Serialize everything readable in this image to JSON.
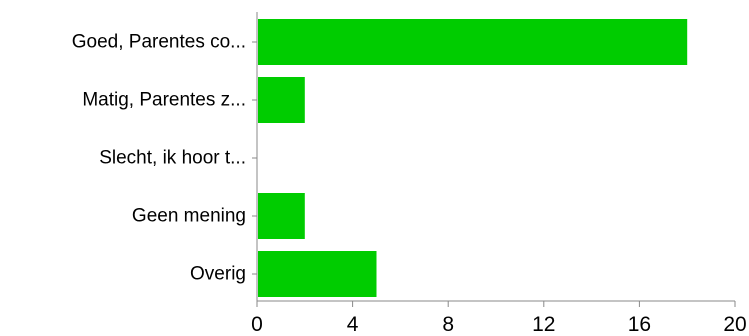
{
  "chart_data": {
    "type": "bar",
    "orientation": "horizontal",
    "categories": [
      "Goed, Parentes co...",
      "Matig, Parentes z...",
      "Slecht, ik hoor t...",
      "Geen mening",
      "Overig"
    ],
    "values": [
      18,
      2,
      0,
      2,
      5
    ],
    "xlim": [
      0,
      20
    ],
    "xticks": [
      "0",
      "4",
      "8",
      "12",
      "16",
      "20"
    ],
    "title": "",
    "xlabel": "",
    "ylabel": "",
    "grid": false,
    "legend": "none",
    "bar_color": "#00cc00"
  }
}
